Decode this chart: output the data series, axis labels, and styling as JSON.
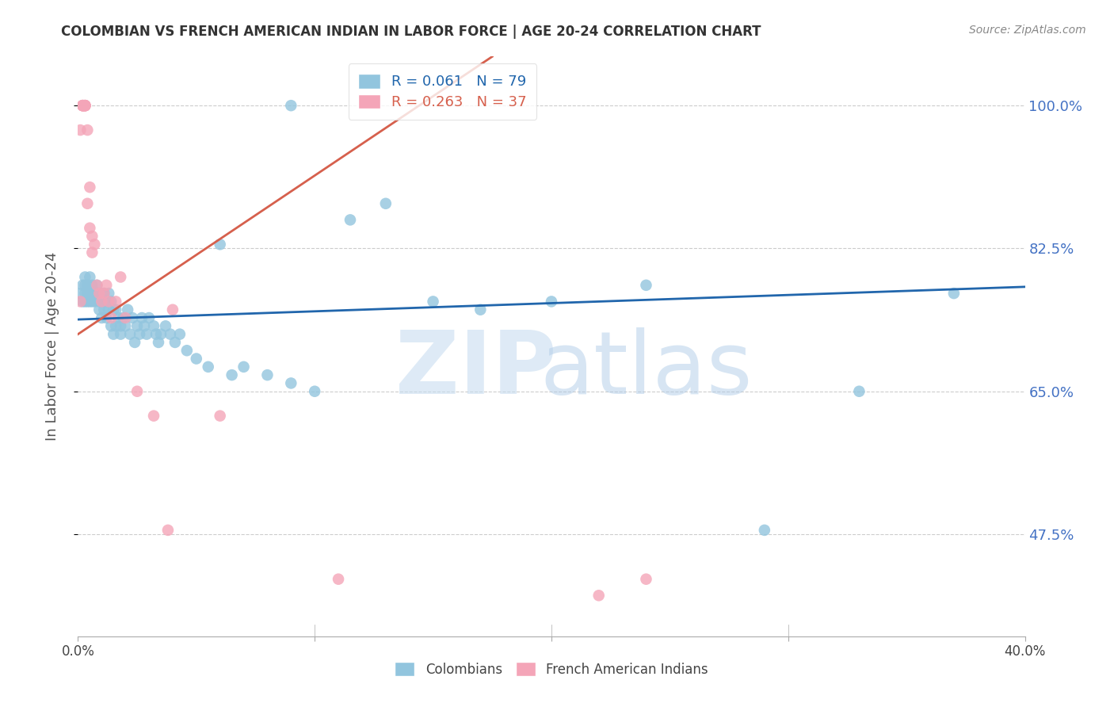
{
  "title": "COLOMBIAN VS FRENCH AMERICAN INDIAN IN LABOR FORCE | AGE 20-24 CORRELATION CHART",
  "source": "Source: ZipAtlas.com",
  "ylabel": "In Labor Force | Age 20-24",
  "ytick_vals": [
    1.0,
    0.825,
    0.65,
    0.475
  ],
  "ytick_labels": [
    "100.0%",
    "82.5%",
    "65.0%",
    "47.5%"
  ],
  "xlim": [
    0.0,
    0.4
  ],
  "ylim": [
    0.35,
    1.06
  ],
  "legend_r1": "R = 0.061",
  "legend_n1": "N = 79",
  "legend_r2": "R = 0.263",
  "legend_n2": "N = 37",
  "blue_scatter_color": "#92c5de",
  "blue_line_color": "#2166ac",
  "pink_scatter_color": "#f4a5b8",
  "pink_line_color": "#d6604d",
  "axis_color": "#aaaaaa",
  "grid_color": "#cccccc",
  "title_color": "#333333",
  "source_color": "#888888",
  "tick_label_color": "#4472c4",
  "ylabel_color": "#555555",
  "watermark_zip_color": "#c8ddf0",
  "watermark_atlas_color": "#b0cce8",
  "colombians_x": [
    0.001,
    0.002,
    0.002,
    0.003,
    0.003,
    0.003,
    0.003,
    0.004,
    0.004,
    0.004,
    0.005,
    0.005,
    0.005,
    0.006,
    0.006,
    0.006,
    0.007,
    0.007,
    0.008,
    0.008,
    0.009,
    0.009,
    0.01,
    0.01,
    0.01,
    0.011,
    0.011,
    0.012,
    0.012,
    0.013,
    0.013,
    0.014,
    0.014,
    0.015,
    0.015,
    0.016,
    0.016,
    0.017,
    0.018,
    0.018,
    0.019,
    0.02,
    0.021,
    0.022,
    0.023,
    0.024,
    0.025,
    0.026,
    0.027,
    0.028,
    0.029,
    0.03,
    0.032,
    0.033,
    0.034,
    0.035,
    0.037,
    0.039,
    0.041,
    0.043,
    0.046,
    0.05,
    0.055,
    0.06,
    0.065,
    0.07,
    0.08,
    0.09,
    0.1,
    0.115,
    0.13,
    0.15,
    0.17,
    0.2,
    0.24,
    0.29,
    0.33,
    0.37,
    0.09
  ],
  "colombians_y": [
    0.77,
    0.76,
    0.78,
    0.77,
    0.78,
    0.76,
    0.79,
    0.77,
    0.76,
    0.78,
    0.77,
    0.76,
    0.79,
    0.77,
    0.76,
    0.78,
    0.77,
    0.76,
    0.78,
    0.77,
    0.76,
    0.75,
    0.77,
    0.76,
    0.74,
    0.77,
    0.75,
    0.76,
    0.74,
    0.77,
    0.75,
    0.76,
    0.73,
    0.75,
    0.72,
    0.75,
    0.73,
    0.74,
    0.73,
    0.72,
    0.74,
    0.73,
    0.75,
    0.72,
    0.74,
    0.71,
    0.73,
    0.72,
    0.74,
    0.73,
    0.72,
    0.74,
    0.73,
    0.72,
    0.71,
    0.72,
    0.73,
    0.72,
    0.71,
    0.72,
    0.7,
    0.69,
    0.68,
    0.83,
    0.67,
    0.68,
    0.67,
    0.66,
    0.65,
    0.86,
    0.88,
    0.76,
    0.75,
    0.76,
    0.78,
    0.48,
    0.65,
    0.77,
    1.0
  ],
  "french_x": [
    0.001,
    0.001,
    0.002,
    0.002,
    0.002,
    0.002,
    0.002,
    0.003,
    0.003,
    0.003,
    0.003,
    0.003,
    0.004,
    0.004,
    0.005,
    0.005,
    0.006,
    0.006,
    0.007,
    0.008,
    0.009,
    0.01,
    0.011,
    0.012,
    0.013,
    0.014,
    0.016,
    0.018,
    0.02,
    0.025,
    0.032,
    0.038,
    0.11,
    0.22,
    0.24,
    0.04,
    0.06
  ],
  "french_y": [
    0.76,
    0.97,
    1.0,
    1.0,
    1.0,
    1.0,
    1.0,
    1.0,
    1.0,
    1.0,
    1.0,
    1.0,
    0.97,
    0.88,
    0.9,
    0.85,
    0.84,
    0.82,
    0.83,
    0.78,
    0.77,
    0.76,
    0.77,
    0.78,
    0.76,
    0.74,
    0.76,
    0.79,
    0.74,
    0.65,
    0.62,
    0.48,
    0.42,
    0.4,
    0.42,
    0.75,
    0.62
  ],
  "blue_trendline_x": [
    0.0,
    0.4
  ],
  "blue_trendline_y": [
    0.738,
    0.778
  ],
  "pink_trendline_x": [
    0.0,
    0.175
  ],
  "pink_trendline_y": [
    0.72,
    1.06
  ]
}
